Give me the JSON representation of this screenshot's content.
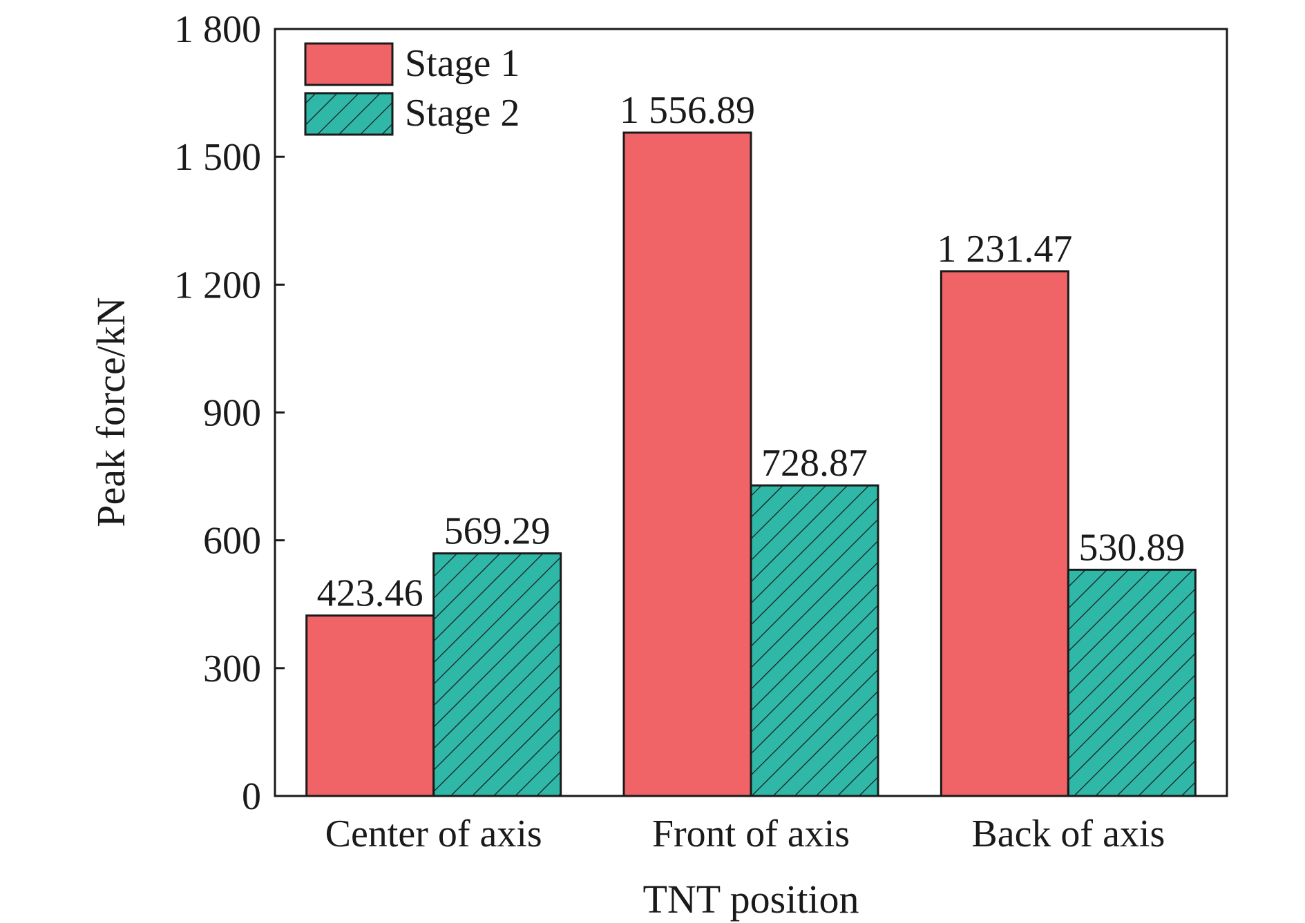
{
  "chart_data": {
    "type": "bar",
    "title": "",
    "xlabel": "TNT position",
    "ylabel": "Peak force/kN",
    "ylim": [
      0,
      1800
    ],
    "yticks": [
      0,
      300,
      600,
      900,
      1200,
      1500,
      1800
    ],
    "ytick_labels": [
      "0",
      "300",
      "600",
      "900",
      "1 200",
      "1 500",
      "1 800"
    ],
    "categories": [
      "Center of axis",
      "Front of axis",
      "Back of axis"
    ],
    "series": [
      {
        "name": "Stage 1",
        "values": [
          423.46,
          1556.89,
          1231.47
        ],
        "labels": [
          "423.46",
          "1 556.89",
          "1 231.47"
        ],
        "color": "#f06467",
        "pattern": "solid"
      },
      {
        "name": "Stage 2",
        "values": [
          569.29,
          728.87,
          530.89
        ],
        "labels": [
          "569.29",
          "728.87",
          "530.89"
        ],
        "color": "#2fb8a8",
        "pattern": "hatch"
      }
    ],
    "legend_position": "top-left",
    "grid": false
  }
}
